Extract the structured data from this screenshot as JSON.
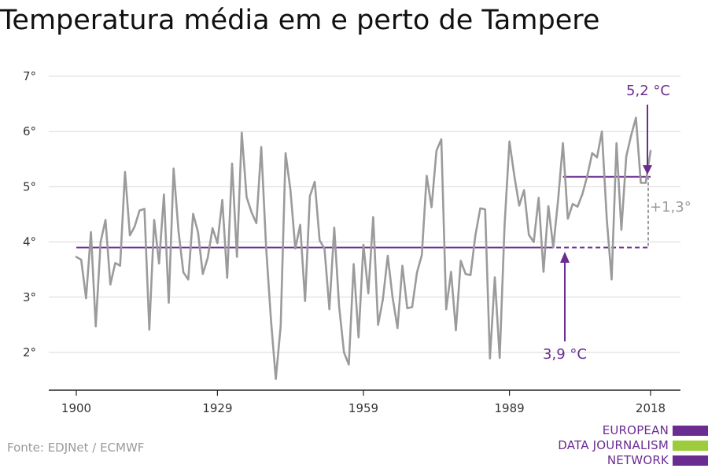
{
  "title": "Temperatura média em e perto de Tampere",
  "source": "Fonte: EDJNet / ECMWF",
  "logo": {
    "lines": [
      "EUROPEAN",
      "DATA JOURNALISM",
      "NETWORK"
    ],
    "colors": {
      "purple": "#6a2c91",
      "green": "#9ccc3c"
    }
  },
  "colors": {
    "series": "#9b9b9b",
    "reference": "#6a2c91",
    "diff": "#9b9b9b",
    "grid": "#d9d9d9"
  },
  "chart_data": {
    "type": "line",
    "title": "Temperatura média em e perto de Tampere",
    "xlabel": "",
    "ylabel": "",
    "xlim": [
      1900,
      2018
    ],
    "ylim": [
      1.3,
      7
    ],
    "x_ticks": [
      1900,
      1929,
      1959,
      1989,
      2018
    ],
    "y_ticks": [
      2,
      3,
      4,
      5,
      6,
      7
    ],
    "y_tick_suffix": "°",
    "grid": true,
    "series": [
      {
        "x": [
          1900,
          1901,
          1902,
          1903,
          1904,
          1905,
          1906,
          1907,
          1908,
          1909,
          1910,
          1911,
          1912,
          1913,
          1914,
          1915,
          1916,
          1917,
          1918,
          1919,
          1920,
          1921,
          1922,
          1923,
          1924,
          1925,
          1926,
          1927,
          1928,
          1929,
          1930,
          1931,
          1932,
          1933,
          1934,
          1935,
          1936,
          1937,
          1938,
          1939,
          1940,
          1941,
          1942,
          1943,
          1944,
          1945,
          1946,
          1947,
          1948,
          1949,
          1950,
          1951,
          1952,
          1953,
          1954,
          1955,
          1956,
          1957,
          1958,
          1959,
          1960,
          1961,
          1962,
          1963,
          1964,
          1965,
          1966,
          1967,
          1968,
          1969,
          1970,
          1971,
          1972,
          1973,
          1974,
          1975,
          1976,
          1977,
          1978,
          1979,
          1980,
          1981,
          1982,
          1983,
          1984,
          1985,
          1986,
          1987,
          1988,
          1989,
          1990,
          1991,
          1992,
          1993,
          1994,
          1995,
          1996,
          1997,
          1998,
          1999,
          2000,
          2001,
          2002,
          2003,
          2004,
          2005,
          2006,
          2007,
          2008,
          2009,
          2010,
          2011,
          2012,
          2013,
          2014,
          2015,
          2016,
          2017,
          2018
        ],
        "values": [
          3.73,
          3.68,
          2.98,
          4.18,
          2.47,
          4.0,
          4.4,
          3.23,
          3.62,
          3.57,
          5.27,
          4.12,
          4.28,
          4.57,
          4.6,
          2.41,
          4.4,
          3.61,
          4.86,
          2.9,
          5.33,
          4.2,
          3.45,
          3.32,
          4.51,
          4.18,
          3.42,
          3.71,
          4.25,
          3.98,
          4.76,
          3.35,
          5.42,
          3.73,
          5.98,
          4.81,
          4.54,
          4.34,
          5.72,
          3.9,
          2.58,
          1.52,
          2.48,
          5.61,
          4.94,
          3.88,
          4.31,
          2.93,
          4.83,
          5.09,
          4.03,
          3.88,
          2.78,
          4.26,
          2.83,
          2.0,
          1.78,
          3.6,
          2.27,
          3.95,
          3.07,
          4.45,
          2.5,
          2.96,
          3.75,
          2.99,
          2.44,
          3.57,
          2.8,
          2.82,
          3.45,
          3.76,
          5.2,
          4.63,
          5.65,
          5.86,
          2.78,
          3.46,
          2.4,
          3.66,
          3.42,
          3.4,
          4.12,
          4.61,
          4.59,
          1.89,
          3.36,
          1.9,
          4.3,
          5.82,
          5.2,
          4.66,
          4.94,
          4.13,
          4.0,
          4.8,
          3.46,
          4.65,
          3.9,
          4.77,
          5.79,
          4.42,
          4.69,
          4.64,
          4.87,
          5.2,
          5.61,
          5.53,
          6.0,
          4.42,
          3.32,
          5.79,
          4.22,
          5.55,
          5.93,
          6.25,
          5.07,
          5.07,
          5.65
        ]
      }
    ],
    "reference_line": {
      "value": 3.9,
      "x_start": 1900,
      "x_end": 1997
    },
    "recent_line": {
      "value": 5.18,
      "x_start": 2000,
      "x_end": 2018
    },
    "annotations": [
      {
        "text": "5,2 °C",
        "x": 2018,
        "y": 5.2
      },
      {
        "text": "3,9 °C",
        "x": 2000,
        "y": 3.9
      },
      {
        "text": "+1,3°",
        "x": 2018,
        "y": 4.55
      }
    ]
  }
}
